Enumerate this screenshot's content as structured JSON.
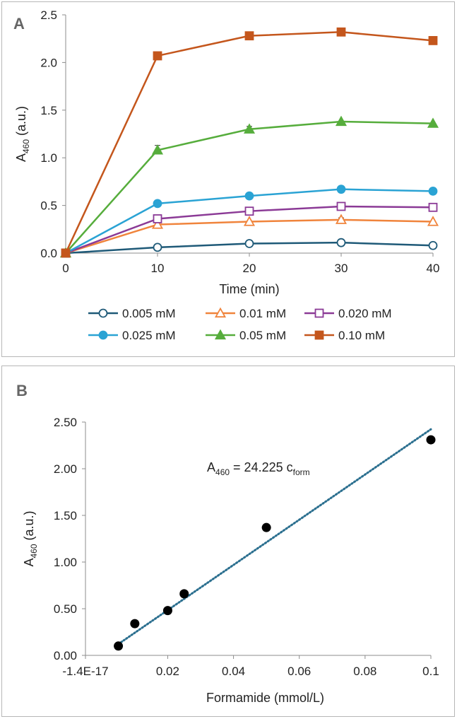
{
  "chart_data": [
    {
      "panel_label": "A",
      "type": "line",
      "xlabel": "Time (min)",
      "ylabel_main": "A",
      "ylabel_sub": "460",
      "ylabel_unit": " (a.u.)",
      "x": [
        0,
        10,
        20,
        30,
        40
      ],
      "xlim": [
        0,
        40
      ],
      "ylim": [
        0,
        2.5
      ],
      "xticks": [
        "0",
        "10",
        "20",
        "30",
        "40"
      ],
      "yticks": [
        "0.0",
        "0.5",
        "1.0",
        "1.5",
        "2.0",
        "2.5"
      ],
      "grid": false,
      "legend_position": "bottom",
      "series": [
        {
          "name": "0.005 mM",
          "color": "#1f5a78",
          "marker": "circle-open",
          "values": [
            0.0,
            0.06,
            0.1,
            0.11,
            0.08
          ]
        },
        {
          "name": "0.01 mM",
          "color": "#f0843c",
          "marker": "triangle-open",
          "values": [
            0.0,
            0.3,
            0.33,
            0.35,
            0.33
          ]
        },
        {
          "name": "0.020 mM",
          "color": "#8b3a96",
          "marker": "square-open",
          "values": [
            0.0,
            0.36,
            0.44,
            0.49,
            0.48
          ]
        },
        {
          "name": "0.025 mM",
          "color": "#2aa3d4",
          "marker": "circle-filled",
          "values": [
            0.0,
            0.52,
            0.6,
            0.67,
            0.65
          ]
        },
        {
          "name": "0.05 mM",
          "color": "#56ad3c",
          "marker": "triangle-filled",
          "values": [
            0.0,
            1.08,
            1.3,
            1.38,
            1.36
          ]
        },
        {
          "name": "0.10 mM",
          "color": "#c4561c",
          "marker": "square-filled",
          "values": [
            0.0,
            2.07,
            2.28,
            2.32,
            2.23
          ]
        }
      ]
    },
    {
      "panel_label": "B",
      "type": "scatter",
      "xlabel": "Formamide (mmol/L)",
      "ylabel_main": "A",
      "ylabel_sub": "460",
      "ylabel_unit": "  (a.u.)",
      "xlim": [
        -0.005,
        0.1
      ],
      "ylim": [
        0,
        2.5
      ],
      "xticks": [
        "-1.4E-17",
        "0.02",
        "0.04",
        "0.06",
        "0.08",
        "0.1"
      ],
      "yticks": [
        "0.00",
        "0.50",
        "1.00",
        "1.50",
        "2.00",
        "2.50"
      ],
      "grid": false,
      "points_color": "#000000",
      "x": [
        0.005,
        0.01,
        0.02,
        0.025,
        0.05,
        0.1
      ],
      "y": [
        0.1,
        0.34,
        0.48,
        0.66,
        1.37,
        2.31
      ],
      "trendline": {
        "slope": 24.225,
        "intercept": 0,
        "x_range": [
          0.005,
          0.1
        ],
        "color": "#2b6f8f",
        "style": "dotted"
      },
      "annotation": {
        "main": "A",
        "sub": "460",
        "mid": " = 24.225 c",
        "sub2": "form"
      }
    }
  ]
}
